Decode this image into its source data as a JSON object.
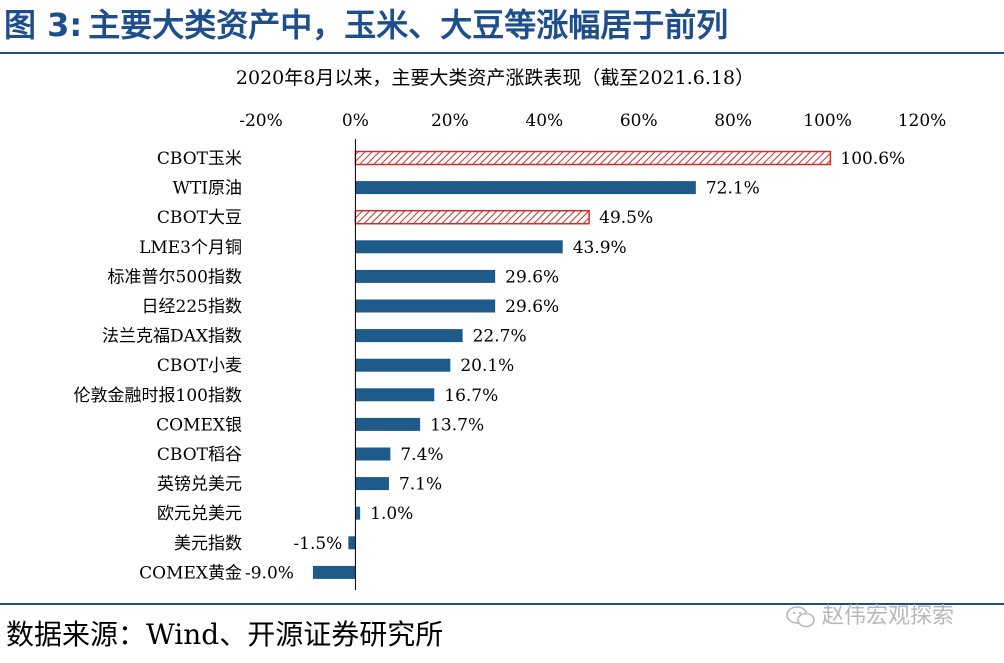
{
  "figure": {
    "label": "图 3:",
    "title": "主要大类资产中，玉米、大豆等涨幅居于前列"
  },
  "source": "数据来源：Wind、开源证券研究所",
  "watermark": "赵伟宏观探索",
  "colors": {
    "title": "#1f4e8c",
    "bar": "#1f5b8a",
    "highlight": "#d02c2c"
  },
  "chart_data": {
    "type": "bar",
    "orientation": "horizontal",
    "title": "2020年8月以来，主要大类资产涨跌表现（截至2021.6.18）",
    "xlim": [
      -20,
      120
    ],
    "xticks": [
      -20,
      0,
      20,
      40,
      60,
      80,
      100,
      120
    ],
    "tick_labels": [
      "-20%",
      "0%",
      "20%",
      "40%",
      "60%",
      "80%",
      "100%",
      "120%"
    ],
    "axis_position": "top",
    "grid": false,
    "categories": [
      "CBOT玉米",
      "WTI原油",
      "CBOT大豆",
      "LME3个月铜",
      "标准普尔500指数",
      "日经225指数",
      "法兰克福DAX指数",
      "CBOT小麦",
      "伦敦金融时报100指数",
      "COMEX银",
      "CBOT稻谷",
      "英镑兑美元",
      "欧元兑美元",
      "美元指数",
      "COMEX黄金"
    ],
    "values": [
      100.6,
      72.1,
      49.5,
      43.9,
      29.6,
      29.6,
      22.7,
      20.1,
      16.7,
      13.7,
      7.4,
      7.1,
      1.0,
      -1.5,
      -9.0
    ],
    "value_labels": [
      "100.6%",
      "72.1%",
      "49.5%",
      "43.9%",
      "29.6%",
      "29.6%",
      "22.7%",
      "20.1%",
      "16.7%",
      "13.7%",
      "7.4%",
      "7.1%",
      "1.0%",
      "-1.5%",
      "-9.0%"
    ],
    "highlighted": [
      "CBOT玉米",
      "CBOT大豆"
    ]
  }
}
